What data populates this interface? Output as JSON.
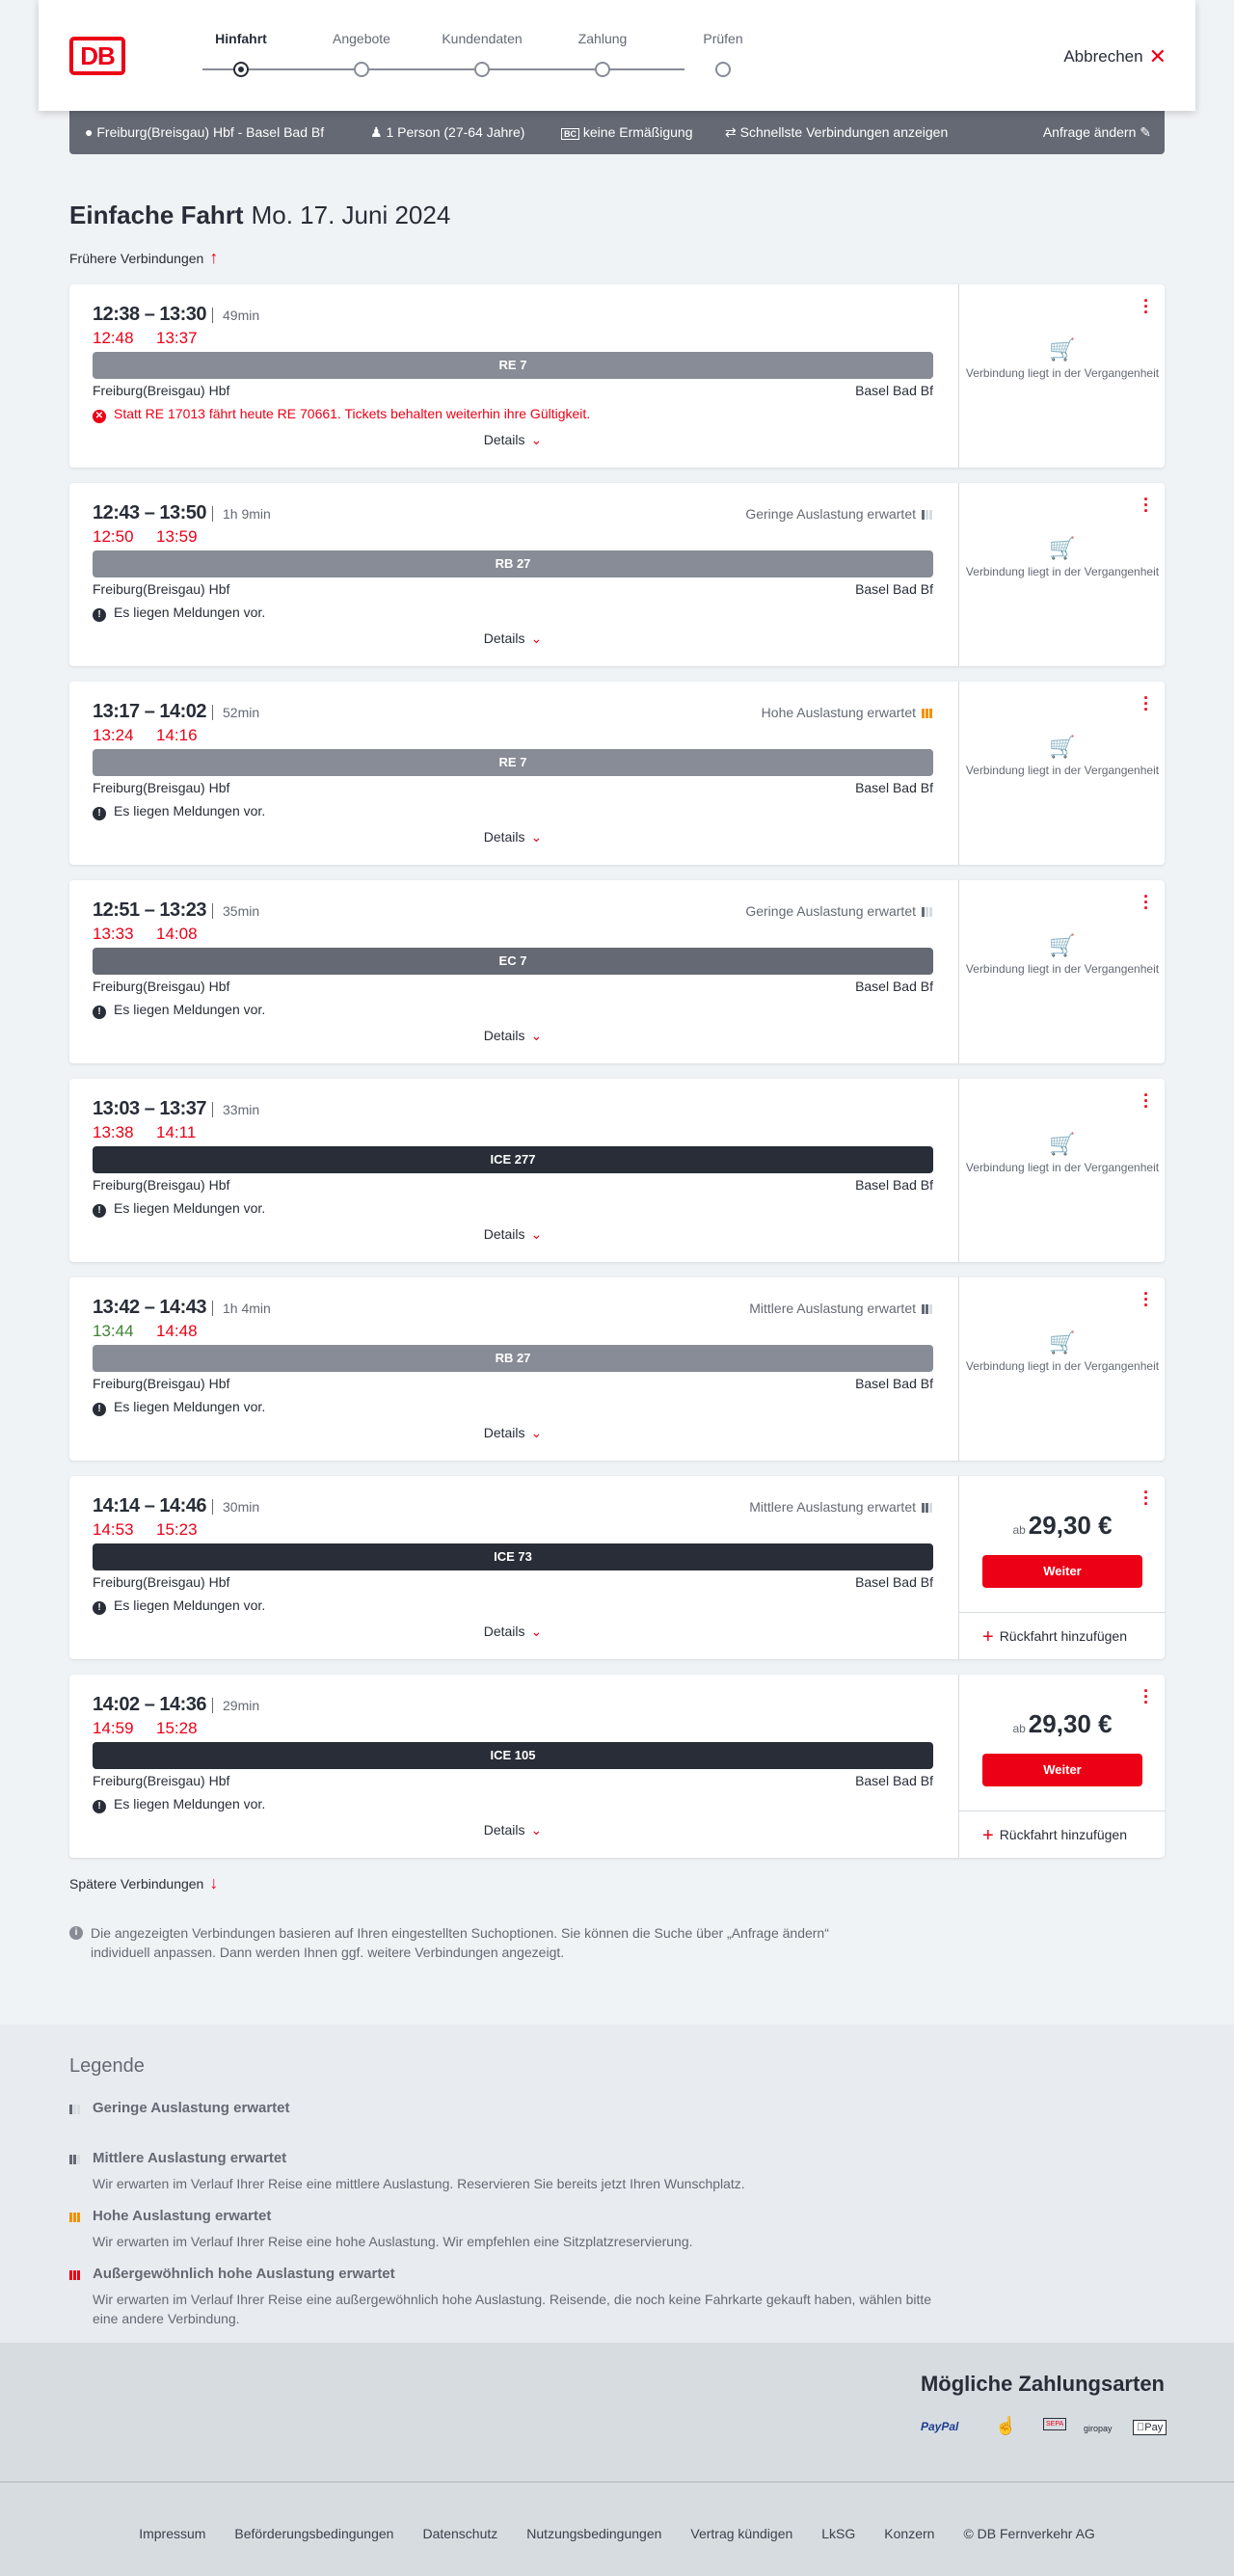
{
  "header": {
    "logo": "DB",
    "steps": [
      "Hinfahrt",
      "Angebote",
      "Kundendaten",
      "Zahlung",
      "Prüfen"
    ],
    "active_step": 0,
    "cancel": "Abbrechen"
  },
  "infobar": {
    "route": "Freiburg(Breisgau) Hbf - Basel Bad Bf",
    "travellers": "1 Person (27-64 Jahre)",
    "discount": "keine Ermäßigung",
    "option": "Schnellste Verbindungen anzeigen",
    "edit": "Anfrage ändern"
  },
  "title": {
    "main": "Einfache Fahrt",
    "date": "Mo. 17. Juni 2024"
  },
  "earlier": "Frühere Verbindungen",
  "later": "Spätere Verbindungen",
  "labels": {
    "details": "Details",
    "past": "Verbindung liegt in der Vergangenheit",
    "ab": "ab",
    "weiter": "Weiter",
    "return": "Rückfahrt hinzufügen",
    "messages": "Es liegen Meldungen vor."
  },
  "colors": {
    "accent": "#ec0016",
    "delay_late": "#ec0016",
    "delay_ontime": "#408335",
    "regional": "#878c96",
    "ec": "#646973",
    "ice": "#282d37",
    "high_load": "#f39200"
  },
  "connections": [
    {
      "times": "12:38 – 13:30",
      "duration": "49min",
      "rt_dep": "12:48",
      "rt_dep_status": "late",
      "rt_arr": "13:37",
      "rt_arr_status": "late",
      "train": "RE 7",
      "train_type": "regional",
      "from": "Freiburg(Breisgau) Hbf",
      "to": "Basel Bad Bf",
      "load": "",
      "load_level": 0,
      "message": "Statt RE 17013 fährt heute RE 70661. Tickets behalten weiterhin ihre Gültigkeit.",
      "message_type": "error",
      "bookable": false
    },
    {
      "times": "12:43 – 13:50",
      "duration": "1h 9min",
      "rt_dep": "12:50",
      "rt_dep_status": "late",
      "rt_arr": "13:59",
      "rt_arr_status": "late",
      "train": "RB 27",
      "train_type": "regional",
      "from": "Freiburg(Breisgau) Hbf",
      "to": "Basel Bad Bf",
      "load": "Geringe Auslastung erwartet",
      "load_level": 1,
      "message": "Es liegen Meldungen vor.",
      "message_type": "info",
      "bookable": false
    },
    {
      "times": "13:17 – 14:02",
      "duration": "52min",
      "rt_dep": "13:24",
      "rt_dep_status": "late",
      "rt_arr": "14:16",
      "rt_arr_status": "late",
      "train": "RE 7",
      "train_type": "regional",
      "from": "Freiburg(Breisgau) Hbf",
      "to": "Basel Bad Bf",
      "load": "Hohe Auslastung erwartet",
      "load_level": 3,
      "message": "Es liegen Meldungen vor.",
      "message_type": "info",
      "bookable": false
    },
    {
      "times": "12:51 – 13:23",
      "duration": "35min",
      "rt_dep": "13:33",
      "rt_dep_status": "late",
      "rt_arr": "14:08",
      "rt_arr_status": "late",
      "train": "EC 7",
      "train_type": "ec",
      "from": "Freiburg(Breisgau) Hbf",
      "to": "Basel Bad Bf",
      "load": "Geringe Auslastung erwartet",
      "load_level": 1,
      "message": "Es liegen Meldungen vor.",
      "message_type": "info",
      "bookable": false
    },
    {
      "times": "13:03 – 13:37",
      "duration": "33min",
      "rt_dep": "13:38",
      "rt_dep_status": "late",
      "rt_arr": "14:11",
      "rt_arr_status": "late",
      "train": "ICE 277",
      "train_type": "ice",
      "from": "Freiburg(Breisgau) Hbf",
      "to": "Basel Bad Bf",
      "load": "",
      "load_level": 0,
      "message": "Es liegen Meldungen vor.",
      "message_type": "info",
      "bookable": false
    },
    {
      "times": "13:42 – 14:43",
      "duration": "1h 4min",
      "rt_dep": "13:44",
      "rt_dep_status": "ontime",
      "rt_arr": "14:48",
      "rt_arr_status": "late",
      "train": "RB 27",
      "train_type": "regional",
      "from": "Freiburg(Breisgau) Hbf",
      "to": "Basel Bad Bf",
      "load": "Mittlere Auslastung erwartet",
      "load_level": 2,
      "message": "Es liegen Meldungen vor.",
      "message_type": "info",
      "bookable": false
    },
    {
      "times": "14:14 – 14:46",
      "duration": "30min",
      "rt_dep": "14:53",
      "rt_dep_status": "late",
      "rt_arr": "15:23",
      "rt_arr_status": "late",
      "train": "ICE 73",
      "train_type": "ice",
      "from": "Freiburg(Breisgau) Hbf",
      "to": "Basel Bad Bf",
      "load": "Mittlere Auslastung erwartet",
      "load_level": 2,
      "message": "Es liegen Meldungen vor.",
      "message_type": "info",
      "bookable": true,
      "price": "29,30 €"
    },
    {
      "times": "14:02 – 14:36",
      "duration": "29min",
      "rt_dep": "14:59",
      "rt_dep_status": "late",
      "rt_arr": "15:28",
      "rt_arr_status": "late",
      "train": "ICE 105",
      "train_type": "ice",
      "from": "Freiburg(Breisgau) Hbf",
      "to": "Basel Bad Bf",
      "load": "",
      "load_level": 0,
      "message": "Es liegen Meldungen vor.",
      "message_type": "info",
      "bookable": true,
      "price": "29,30 €"
    }
  ],
  "note": "Die angezeigten Verbindungen basieren auf Ihren eingestellten Suchoptionen. Sie können die Suche über „Anfrage ändern“ individuell anpassen. Dann werden Ihnen ggf. weitere Verbindungen angezeigt.",
  "legend": {
    "title": "Legende",
    "items": [
      {
        "title": "Geringe Auslastung erwartet",
        "desc": "",
        "level": 1
      },
      {
        "title": "Mittlere Auslastung erwartet",
        "desc": "Wir erwarten im Verlauf Ihrer Reise eine mittlere Auslastung. Reservieren Sie bereits jetzt Ihren Wunschplatz.",
        "level": 2
      },
      {
        "title": "Hohe Auslastung erwartet",
        "desc": "Wir erwarten im Verlauf Ihrer Reise eine hohe Auslastung. Wir empfehlen eine Sitzplatzreservierung.",
        "level": 3
      },
      {
        "title": "Außergewöhnlich hohe Auslastung erwartet",
        "desc": "Wir erwarten im Verlauf Ihrer Reise eine außergewöhnlich hohe Auslastung. Reisende, die noch keine Fahrkarte gekauft haben, wählen bitte eine andere Verbindung.",
        "level": 4
      }
    ]
  },
  "payment": {
    "title": "Mögliche Zahlungsarten",
    "methods": [
      "PayPal",
      "Kreditkarte",
      "SEPA",
      "giropay",
      "Pay"
    ]
  },
  "footer": {
    "links": [
      "Impressum",
      "Beförderungsbedingungen",
      "Datenschutz",
      "Nutzungsbedingungen",
      "Vertrag kündigen",
      "LkSG",
      "Konzern",
      "© DB Fernverkehr AG"
    ]
  }
}
